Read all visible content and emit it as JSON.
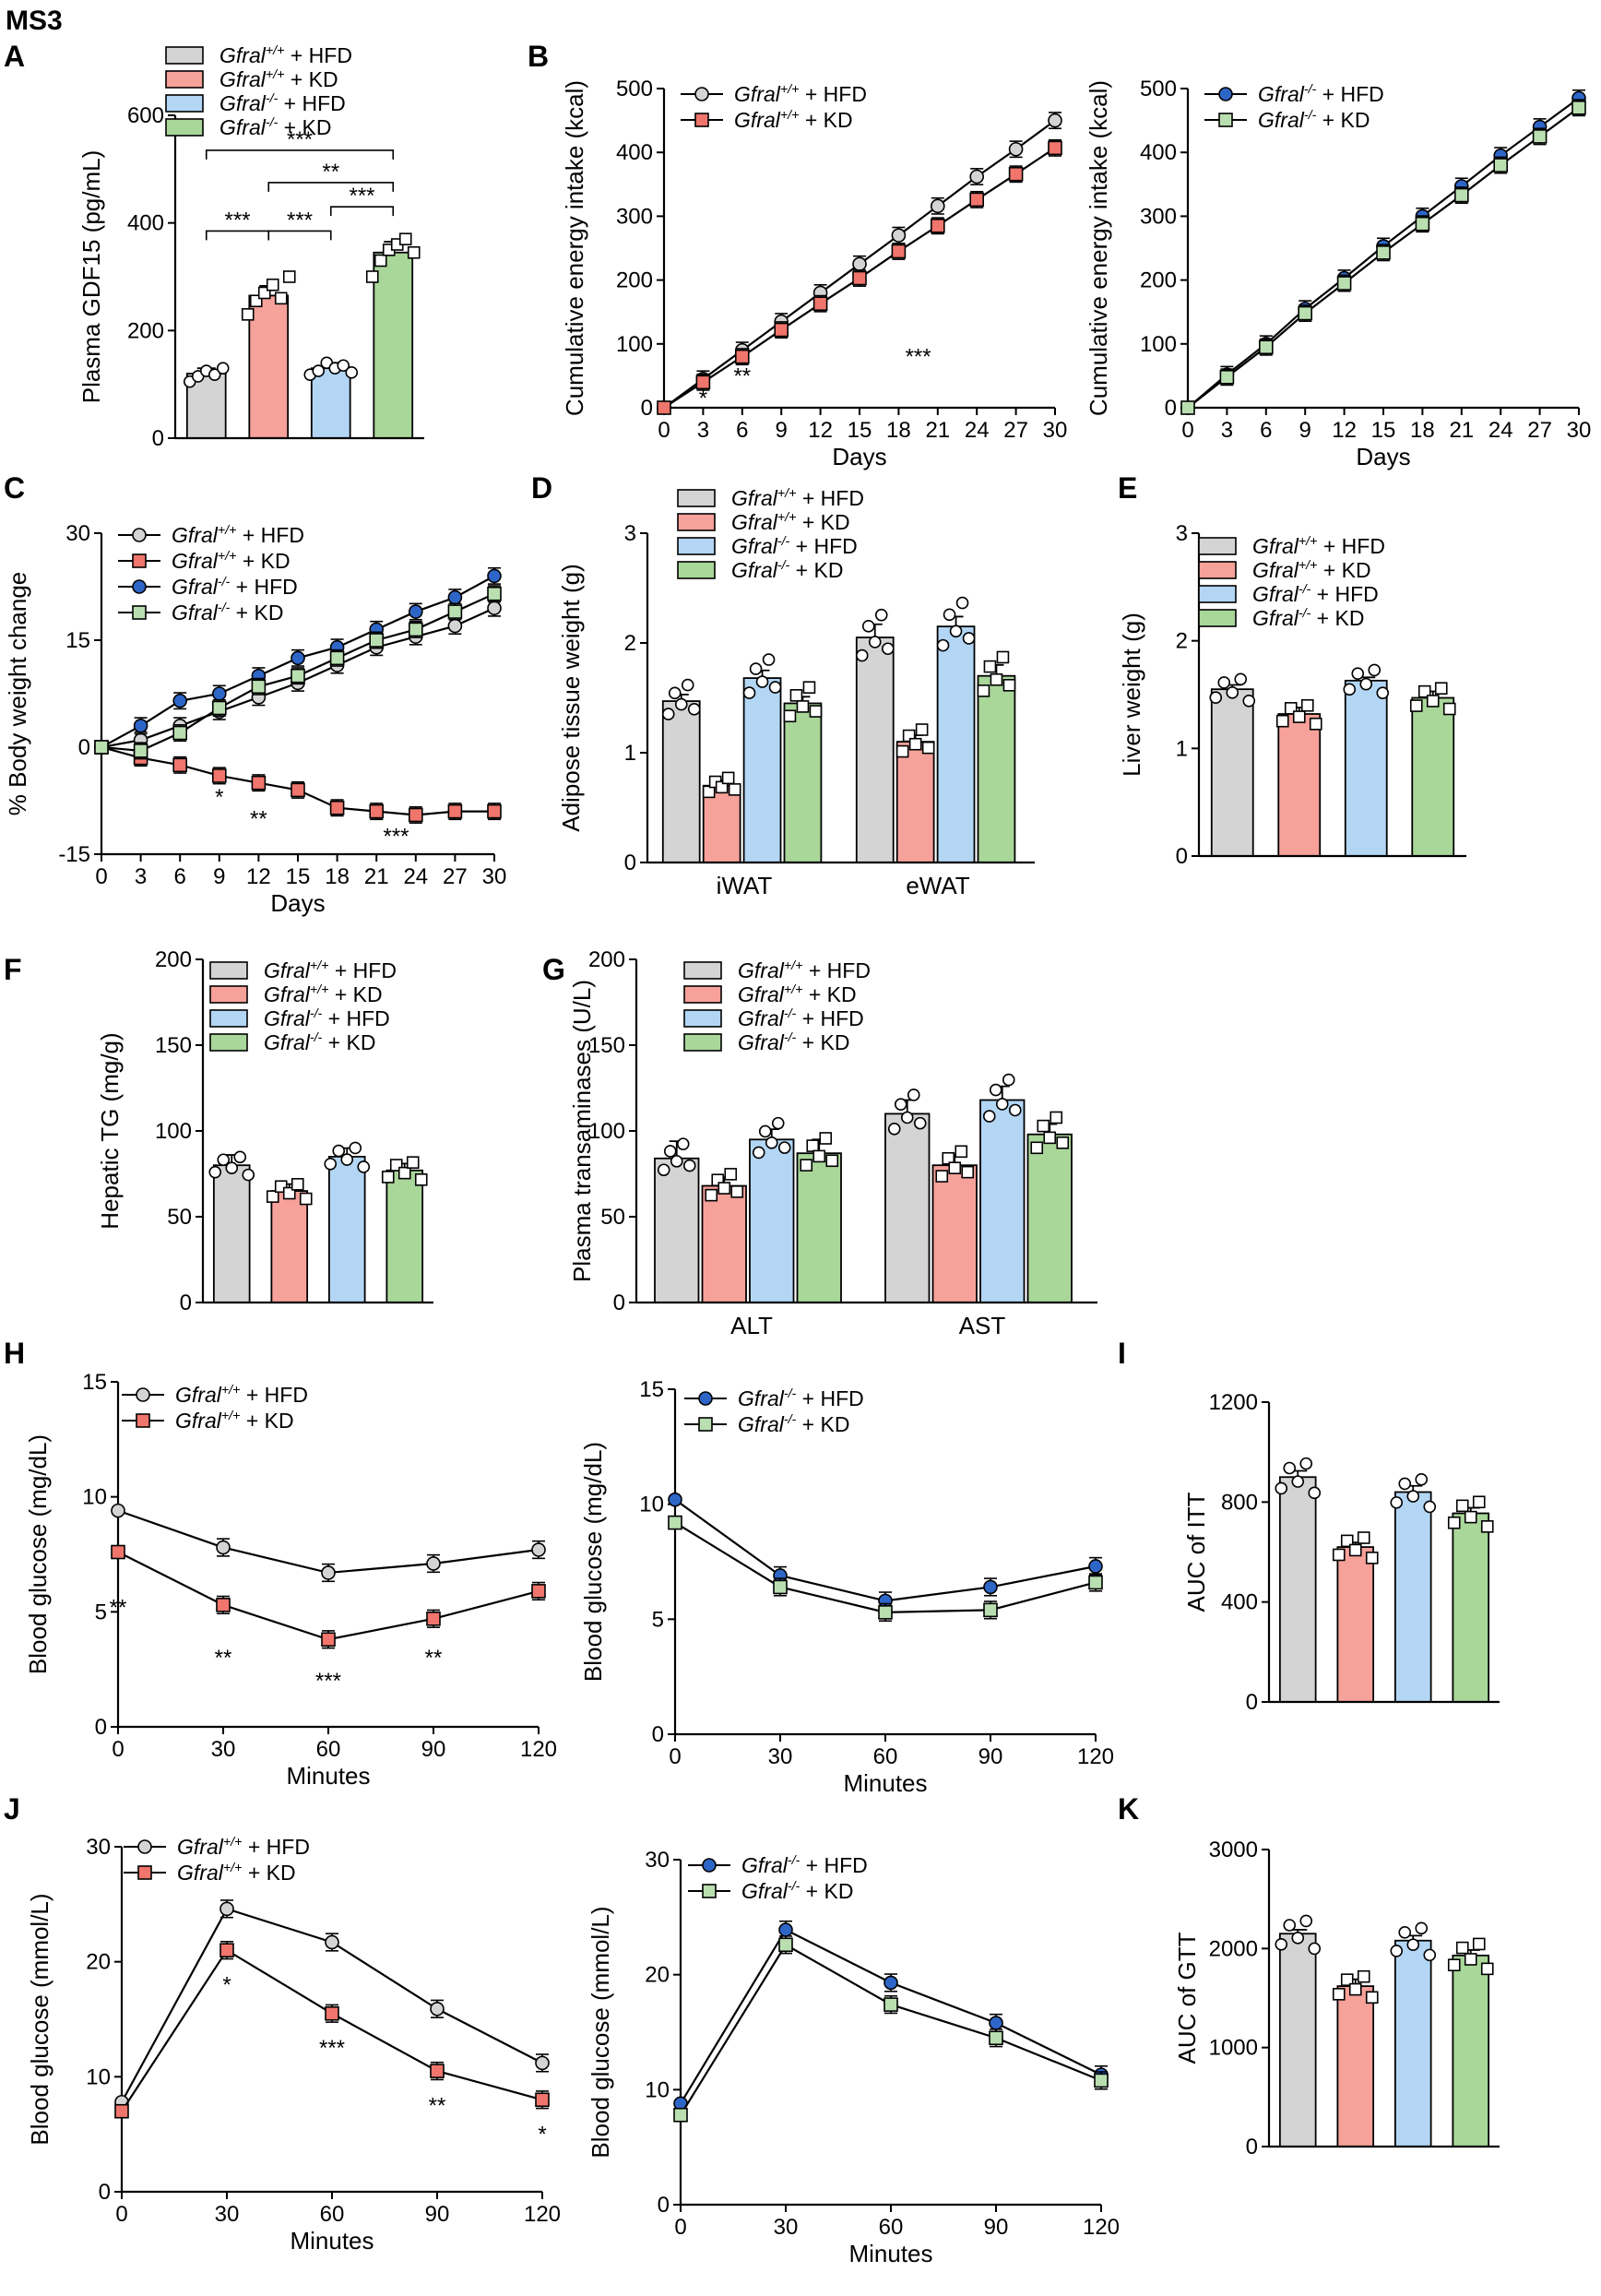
{
  "figure": {
    "title": "MS3",
    "colors": {
      "wt_hfd": "#d4d4d4",
      "wt_kd": "#f6a19a",
      "ko_hfd": "#b3d6f5",
      "ko_kd": "#a9d79a",
      "wt_hfd_line_marker": "#d4d4d4",
      "wt_kd_line_marker": "#f0756c",
      "ko_hfd_line_marker": "#2e66c8",
      "ko_kd_line_marker": "#b9dfb0"
    },
    "group_legend": {
      "wt_hfd": "Gfral+/+ + HFD",
      "wt_kd": "Gfral+/+ + KD",
      "ko_hfd": "Gfral-/- + HFD",
      "ko_kd": "Gfral-/- + KD"
    }
  },
  "chart_data": [
    {
      "panel": "A",
      "type": "bar",
      "ylabel": "Plasma GDF15 (pg/mL)",
      "ylim": [
        0,
        600
      ],
      "yticks": [
        0,
        200,
        400,
        600
      ],
      "groups": [
        "wt_hfd",
        "wt_kd",
        "ko_hfd",
        "ko_kd"
      ],
      "legend": [
        "Gfral+/+ + HFD",
        "Gfral+/+ + KD",
        "Gfral-/- + HFD",
        "Gfral-/- + KD"
      ],
      "values": [
        120,
        265,
        130,
        345
      ],
      "errors": [
        10,
        18,
        10,
        20
      ],
      "points": [
        [
          105,
          115,
          125,
          118,
          130
        ],
        [
          230,
          255,
          270,
          285,
          260,
          300
        ],
        [
          118,
          125,
          140,
          130,
          135,
          122
        ],
        [
          300,
          330,
          350,
          360,
          370,
          345
        ]
      ],
      "markers": [
        "circle",
        "square",
        "circle",
        "square"
      ],
      "significance": [
        {
          "from": 0,
          "to": 3,
          "label": "***",
          "level": 535
        },
        {
          "from": 1,
          "to": 3,
          "label": "**",
          "level": 475
        },
        {
          "from": 2,
          "to": 3,
          "label": "***",
          "level": 430
        },
        {
          "from": 0,
          "to": 1,
          "label": "***",
          "level": 385
        },
        {
          "from": 1,
          "to": 2,
          "label": "***",
          "level": 385
        }
      ]
    },
    {
      "panel": "B",
      "type": "line",
      "xlabel": "Days",
      "ylabel": "Cumulative energy intake (kcal)",
      "xlim": [
        0,
        30
      ],
      "ylim": [
        0,
        500
      ],
      "xticks": [
        0,
        3,
        6,
        9,
        12,
        15,
        18,
        21,
        24,
        27,
        30
      ],
      "yticks": [
        0,
        100,
        200,
        300,
        400,
        500
      ],
      "x": [
        0,
        3,
        6,
        9,
        12,
        15,
        18,
        21,
        24,
        27,
        30
      ],
      "series": [
        {
          "name": "Gfral+/+ + HFD",
          "group": "wt_hfd",
          "marker": "circle",
          "values": [
            0,
            45,
            90,
            135,
            180,
            225,
            270,
            316,
            362,
            405,
            450
          ]
        },
        {
          "name": "Gfral+/+ + KD",
          "group": "wt_kd",
          "marker": "square",
          "values": [
            0,
            40,
            80,
            122,
            163,
            203,
            245,
            285,
            326,
            366,
            407
          ]
        }
      ],
      "annotations": [
        {
          "x": 3,
          "y": 15,
          "text": "*"
        },
        {
          "x": 6,
          "y": 50,
          "text": "**"
        },
        {
          "x": 19.5,
          "y": 80,
          "text": "***"
        }
      ]
    },
    {
      "panel": "B2",
      "type": "line",
      "xlabel": "Days",
      "ylabel": "Cumulative energy intake (kcal)",
      "xlim": [
        0,
        30
      ],
      "ylim": [
        0,
        500
      ],
      "xticks": [
        0,
        3,
        6,
        9,
        12,
        15,
        18,
        21,
        24,
        27,
        30
      ],
      "yticks": [
        0,
        100,
        200,
        300,
        400,
        500
      ],
      "x": [
        0,
        3,
        6,
        9,
        12,
        15,
        18,
        21,
        24,
        27,
        30
      ],
      "series": [
        {
          "name": "Gfral-/- + HFD",
          "group": "ko_hfd",
          "marker": "circle",
          "values": [
            0,
            52,
            100,
            155,
            203,
            253,
            300,
            347,
            395,
            440,
            485
          ]
        },
        {
          "name": "Gfral-/- + KD",
          "group": "ko_kd",
          "marker": "square",
          "values": [
            0,
            48,
            95,
            148,
            195,
            243,
            288,
            333,
            380,
            425,
            470
          ]
        }
      ],
      "annotations": []
    },
    {
      "panel": "C",
      "type": "line",
      "xlabel": "Days",
      "ylabel": "% Body weight change",
      "xlim": [
        0,
        30
      ],
      "ylim": [
        -15,
        30
      ],
      "xticks": [
        0,
        3,
        6,
        9,
        12,
        15,
        18,
        21,
        24,
        27,
        30
      ],
      "yticks": [
        -15,
        0,
        15,
        30
      ],
      "x": [
        0,
        3,
        6,
        9,
        12,
        15,
        18,
        21,
        24,
        27,
        30
      ],
      "series": [
        {
          "name": "Gfral+/+ + HFD",
          "group": "wt_hfd",
          "marker": "circle",
          "values": [
            0,
            1,
            3,
            5,
            7,
            9,
            11.5,
            14,
            15.5,
            17,
            19.5
          ]
        },
        {
          "name": "Gfral+/+ + KD",
          "group": "wt_kd",
          "marker": "square",
          "values": [
            0,
            -1.5,
            -2.5,
            -4,
            -5,
            -6,
            -8.5,
            -9,
            -9.5,
            -9,
            -9
          ]
        },
        {
          "name": "Gfral-/- + HFD",
          "group": "ko_hfd",
          "marker": "circle",
          "values": [
            0,
            3,
            6.5,
            7.5,
            10,
            12.5,
            14,
            16.5,
            19,
            21,
            24
          ]
        },
        {
          "name": "Gfral-/- + KD",
          "group": "ko_kd",
          "marker": "square",
          "values": [
            0,
            -0.5,
            2,
            5.5,
            8.5,
            10,
            12.5,
            15,
            16.5,
            19,
            21.5
          ]
        }
      ],
      "annotations": [
        {
          "x": 9,
          "y": -7,
          "text": "*"
        },
        {
          "x": 12,
          "y": -10,
          "text": "**"
        },
        {
          "x": 22.5,
          "y": -12.5,
          "text": "***"
        }
      ]
    },
    {
      "panel": "D",
      "type": "bar",
      "ylabel": "Adipose tissue weight (g)",
      "ylim": [
        0,
        3
      ],
      "yticks": [
        0,
        1,
        2,
        3
      ],
      "categories": [
        "iWAT",
        "eWAT"
      ],
      "legend": [
        "Gfral+/+ + HFD",
        "Gfral+/+ + KD",
        "Gfral-/- + HFD",
        "Gfral-/- + KD"
      ],
      "series": [
        {
          "group": "wt_hfd",
          "values": [
            1.47,
            2.05
          ],
          "errors": [
            0.06,
            0.12
          ]
        },
        {
          "group": "wt_kd",
          "values": [
            0.7,
            1.1
          ],
          "errors": [
            0.05,
            0.06
          ]
        },
        {
          "group": "ko_hfd",
          "values": [
            1.68,
            2.15
          ],
          "errors": [
            0.07,
            0.09
          ]
        },
        {
          "group": "ko_kd",
          "values": [
            1.45,
            1.7
          ],
          "errors": [
            0.06,
            0.1
          ]
        }
      ]
    },
    {
      "panel": "E",
      "type": "bar",
      "ylabel": "Liver weight (g)",
      "ylim": [
        0,
        3
      ],
      "yticks": [
        0,
        1,
        2,
        3
      ],
      "groups": [
        "wt_hfd",
        "wt_kd",
        "ko_hfd",
        "ko_kd"
      ],
      "legend": [
        "Gfral+/+ + HFD",
        "Gfral+/+ + KD",
        "Gfral-/- + HFD",
        "Gfral-/- + KD"
      ],
      "values": [
        1.55,
        1.32,
        1.63,
        1.47
      ],
      "errors": [
        0.04,
        0.06,
        0.03,
        0.06
      ]
    },
    {
      "panel": "F",
      "type": "bar",
      "ylabel": "Hepatic TG (mg/g)",
      "ylim": [
        0,
        200
      ],
      "yticks": [
        0,
        50,
        100,
        150,
        200
      ],
      "groups": [
        "wt_hfd",
        "wt_kd",
        "ko_hfd",
        "ko_kd"
      ],
      "legend": [
        "Gfral+/+ + HFD",
        "Gfral+/+ + KD",
        "Gfral-/- + HFD",
        "Gfral-/- + KD"
      ],
      "values": [
        80,
        65,
        85,
        77
      ],
      "errors": [
        6,
        4,
        5,
        4
      ]
    },
    {
      "panel": "G",
      "type": "bar",
      "ylabel": "Plasma transaminases (U/L)",
      "ylim": [
        0,
        200
      ],
      "yticks": [
        0,
        50,
        100,
        150,
        200
      ],
      "categories": [
        "ALT",
        "AST"
      ],
      "legend": [
        "Gfral+/+ + HFD",
        "Gfral+/+ + KD",
        "Gfral-/- + HFD",
        "Gfral-/- + KD"
      ],
      "series": [
        {
          "group": "wt_hfd",
          "values": [
            84,
            110
          ],
          "errors": [
            10,
            8
          ]
        },
        {
          "group": "wt_kd",
          "values": [
            68,
            80
          ],
          "errors": [
            5,
            6
          ]
        },
        {
          "group": "ko_hfd",
          "values": [
            95,
            118
          ],
          "errors": [
            6,
            8
          ]
        },
        {
          "group": "ko_kd",
          "values": [
            87,
            98
          ],
          "errors": [
            8,
            6
          ]
        }
      ]
    },
    {
      "panel": "H",
      "type": "line",
      "xlabel": "Minutes",
      "ylabel": "Blood glucose (mg/dL)",
      "xlim": [
        0,
        120
      ],
      "ylim": [
        0,
        15
      ],
      "xticks": [
        0,
        30,
        60,
        90,
        120
      ],
      "yticks": [
        0,
        5,
        10,
        15
      ],
      "x": [
        0,
        30,
        60,
        90,
        120
      ],
      "series": [
        {
          "name": "Gfral+/+ + HFD",
          "group": "wt_hfd",
          "marker": "circle",
          "values": [
            9.4,
            7.8,
            6.7,
            7.1,
            7.7
          ]
        },
        {
          "name": "Gfral+/+ + KD",
          "group": "wt_kd",
          "marker": "square",
          "values": [
            7.6,
            5.3,
            3.8,
            4.7,
            5.9
          ]
        }
      ],
      "annotations": [
        {
          "x": 0,
          "y": 5.2,
          "text": "**"
        },
        {
          "x": 30,
          "y": 3.0,
          "text": "**"
        },
        {
          "x": 60,
          "y": 2.0,
          "text": "***"
        },
        {
          "x": 90,
          "y": 3.0,
          "text": "**"
        }
      ]
    },
    {
      "panel": "H2",
      "type": "line",
      "xlabel": "Minutes",
      "ylabel": "Blood glucose (mg/dL)",
      "xlim": [
        0,
        120
      ],
      "ylim": [
        0,
        15
      ],
      "xticks": [
        0,
        30,
        60,
        90,
        120
      ],
      "yticks": [
        0,
        5,
        10,
        15
      ],
      "x": [
        0,
        30,
        60,
        90,
        120
      ],
      "series": [
        {
          "name": "Gfral-/- + HFD",
          "group": "ko_hfd",
          "marker": "circle",
          "values": [
            10.2,
            6.9,
            5.8,
            6.4,
            7.3
          ]
        },
        {
          "name": "Gfral-/- + KD",
          "group": "ko_kd",
          "marker": "square",
          "values": [
            9.2,
            6.4,
            5.3,
            5.4,
            6.6
          ]
        }
      ],
      "annotations": []
    },
    {
      "panel": "I",
      "type": "bar",
      "ylabel": "AUC of ITT",
      "ylim": [
        0,
        1200
      ],
      "yticks": [
        0,
        400,
        800,
        1200
      ],
      "groups": [
        "wt_hfd",
        "wt_kd",
        "ko_hfd",
        "ko_kd"
      ],
      "values": [
        900,
        620,
        840,
        755
      ],
      "errors": [
        25,
        18,
        25,
        22
      ]
    },
    {
      "panel": "J",
      "type": "line",
      "xlabel": "Minutes",
      "ylabel": "Blood glucose (mmol/L)",
      "xlim": [
        0,
        120
      ],
      "ylim": [
        0,
        30
      ],
      "xticks": [
        0,
        30,
        60,
        90,
        120
      ],
      "yticks": [
        0,
        10,
        20,
        30
      ],
      "x": [
        0,
        30,
        60,
        90,
        120
      ],
      "series": [
        {
          "name": "Gfral+/+ + HFD",
          "group": "wt_hfd",
          "marker": "circle",
          "values": [
            7.8,
            24.6,
            21.7,
            15.9,
            11.2
          ]
        },
        {
          "name": "Gfral+/+ + KD",
          "group": "wt_kd",
          "marker": "square",
          "values": [
            7.0,
            21.0,
            15.5,
            10.5,
            8.0
          ]
        }
      ],
      "annotations": [
        {
          "x": 30,
          "y": 18.0,
          "text": "*"
        },
        {
          "x": 60,
          "y": 12.5,
          "text": "***"
        },
        {
          "x": 90,
          "y": 7.5,
          "text": "**"
        },
        {
          "x": 120,
          "y": 5.0,
          "text": "*"
        }
      ]
    },
    {
      "panel": "J2",
      "type": "line",
      "xlabel": "Minutes",
      "ylabel": "Blood glucose (mmol/L)",
      "xlim": [
        0,
        120
      ],
      "ylim": [
        0,
        30
      ],
      "xticks": [
        0,
        30,
        60,
        90,
        120
      ],
      "yticks": [
        0,
        10,
        20,
        30
      ],
      "x": [
        0,
        30,
        60,
        90,
        120
      ],
      "series": [
        {
          "name": "Gfral-/- + HFD",
          "group": "ko_hfd",
          "marker": "circle",
          "values": [
            8.8,
            23.9,
            19.3,
            15.8,
            11.3
          ]
        },
        {
          "name": "Gfral-/- + KD",
          "group": "ko_kd",
          "marker": "square",
          "values": [
            7.8,
            22.6,
            17.4,
            14.5,
            10.8
          ]
        }
      ],
      "annotations": []
    },
    {
      "panel": "K",
      "type": "bar",
      "ylabel": "AUC of GTT",
      "ylim": [
        0,
        3000
      ],
      "yticks": [
        0,
        1000,
        2000,
        3000
      ],
      "groups": [
        "wt_hfd",
        "wt_kd",
        "ko_hfd",
        "ko_kd"
      ],
      "values": [
        2150,
        1620,
        2080,
        1930
      ],
      "errors": [
        40,
        70,
        50,
        55
      ]
    }
  ]
}
